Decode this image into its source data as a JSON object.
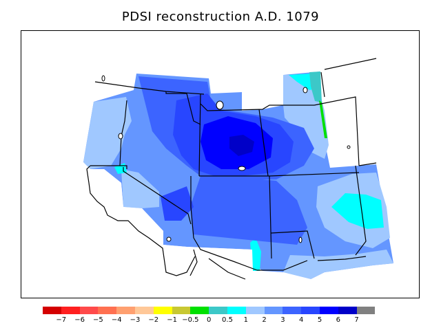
{
  "title": "PDSI reconstruction A.D. 1079",
  "legend": {
    "colors": [
      "#d40000",
      "#ff1f1f",
      "#ff4a4a",
      "#ff7050",
      "#ffa070",
      "#ffc898",
      "#ffff00",
      "#c8c832",
      "#00e000",
      "#3cc8c8",
      "#00ffff",
      "#a0c8ff",
      "#6496ff",
      "#3c64ff",
      "#2846ff",
      "#0000ff",
      "#0000c8",
      "#808080"
    ],
    "labels": [
      "−7",
      "−6",
      "−5",
      "−4",
      "−3",
      "−2",
      "−1",
      "−0.5",
      "0",
      "0.5",
      "1",
      "2",
      "3",
      "4",
      "5",
      "6",
      "7"
    ]
  },
  "map": {
    "region": "Western United States",
    "dominant_values": "PDSI 1 to 6 (wet)",
    "colors": {
      "light_blue": "#a0c8ff",
      "mid_blue": "#6496ff",
      "blue": "#3c64ff",
      "deep_blue": "#2846ff",
      "dark_blue": "#0000ff",
      "navy": "#0000c8",
      "cyan": "#00ffff",
      "teal": "#3cc8c8",
      "green": "#00e000"
    }
  }
}
